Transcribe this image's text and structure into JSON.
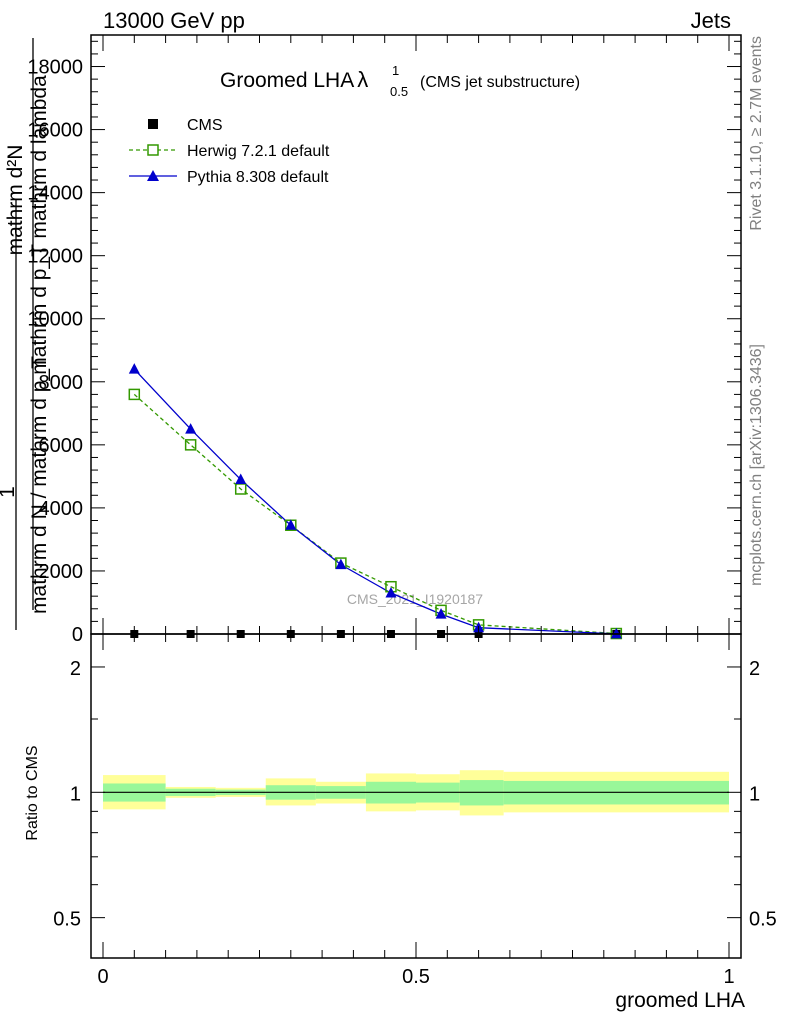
{
  "header": {
    "left": "13000 GeV pp",
    "right": "Jets"
  },
  "side_labels": {
    "rivet": "Rivet 3.1.10, ≥ 2.7M events",
    "mcplots": "mcplots.cern.ch [arXiv:1306.3436]"
  },
  "chart_data": [
    {
      "type": "line",
      "title": "Groomed LHA",
      "title_lambda": "λ",
      "title_sup": "1",
      "title_sub": "0.5",
      "subtitle": "(CMS jet substructure)",
      "ylabel_numerator": "mathrm d²N",
      "ylabel_numerator2": "mathrm d p_T mathrm d lambda",
      "ylabel_one": "1",
      "ylabel_denominator": "mathrm d N / mathrm d p_T",
      "xlim": [
        0,
        1
      ],
      "ylim": [
        0,
        19000
      ],
      "yticks": [
        0,
        2000,
        4000,
        6000,
        8000,
        10000,
        12000,
        14000,
        16000,
        18000
      ],
      "ytick_labels": [
        "0",
        "2000",
        "4000",
        "6000",
        "8000",
        "10000",
        "12000",
        "14000",
        "16000",
        "18000"
      ],
      "watermark": "CMS_2021_I1920187",
      "legend_position": "top-left",
      "x": [
        0.05,
        0.14,
        0.22,
        0.3,
        0.38,
        0.46,
        0.54,
        0.6,
        0.82
      ],
      "series": [
        {
          "name": "CMS",
          "style": "markers",
          "color": "#000000",
          "marker": "square",
          "values": [
            0,
            0,
            0,
            0,
            0,
            0,
            0,
            0,
            0
          ]
        },
        {
          "name": "Herwig 7.2.1 default",
          "style": "dashed",
          "color": "#339900",
          "marker": "open-square",
          "values": [
            7600,
            6000,
            4600,
            3450,
            2250,
            1500,
            750,
            290,
            15
          ]
        },
        {
          "name": "Pythia 8.308 default",
          "style": "solid",
          "color": "#0000cc",
          "marker": "triangle",
          "values": [
            8400,
            6500,
            4900,
            3450,
            2200,
            1300,
            630,
            200,
            5
          ]
        }
      ]
    },
    {
      "type": "area",
      "ylabel": "Ratio to CMS",
      "xlabel": "groomed LHA",
      "xlim": [
        0,
        1
      ],
      "ylim": [
        0.4,
        2.4
      ],
      "log_y": true,
      "yticks": [
        0.5,
        1,
        2
      ],
      "ytick_labels": [
        "0.5",
        "1",
        "2"
      ],
      "xticks": [
        0,
        0.5,
        1
      ],
      "xtick_labels": [
        "0",
        "0.5",
        "1"
      ],
      "reference": 1,
      "band_colors": {
        "inner": "#99f799",
        "outer": "#ffff99"
      },
      "bins": [
        {
          "lo": 0.0,
          "hi": 0.1,
          "inner": [
            0.95,
            1.05
          ],
          "outer": [
            0.91,
            1.1
          ]
        },
        {
          "lo": 0.1,
          "hi": 0.18,
          "inner": [
            0.98,
            1.02
          ],
          "outer": [
            0.97,
            1.03
          ]
        },
        {
          "lo": 0.18,
          "hi": 0.26,
          "inner": [
            0.985,
            1.015
          ],
          "outer": [
            0.975,
            1.025
          ]
        },
        {
          "lo": 0.26,
          "hi": 0.34,
          "inner": [
            0.96,
            1.04
          ],
          "outer": [
            0.93,
            1.08
          ]
        },
        {
          "lo": 0.34,
          "hi": 0.42,
          "inner": [
            0.965,
            1.035
          ],
          "outer": [
            0.94,
            1.06
          ]
        },
        {
          "lo": 0.42,
          "hi": 0.5,
          "inner": [
            0.94,
            1.06
          ],
          "outer": [
            0.9,
            1.11
          ]
        },
        {
          "lo": 0.5,
          "hi": 0.57,
          "inner": [
            0.945,
            1.055
          ],
          "outer": [
            0.905,
            1.105
          ]
        },
        {
          "lo": 0.57,
          "hi": 0.64,
          "inner": [
            0.93,
            1.07
          ],
          "outer": [
            0.88,
            1.13
          ]
        },
        {
          "lo": 0.64,
          "hi": 1.0,
          "inner": [
            0.935,
            1.065
          ],
          "outer": [
            0.895,
            1.12
          ]
        }
      ]
    }
  ]
}
